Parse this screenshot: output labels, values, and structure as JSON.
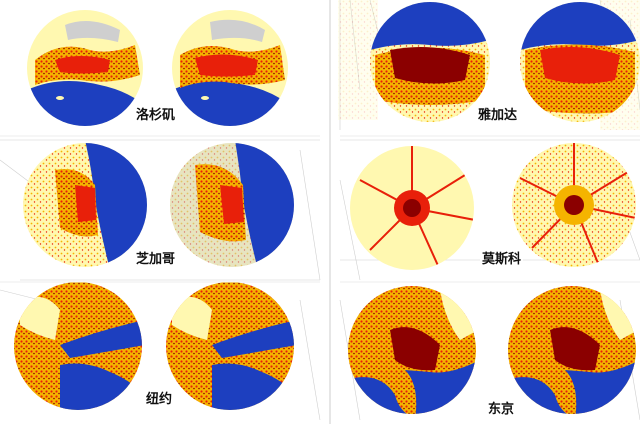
{
  "cities": [
    {
      "id": "los-angeles",
      "label": "洛杉矶"
    },
    {
      "id": "jakarta",
      "label": "雅加达"
    },
    {
      "id": "chicago",
      "label": "芝加哥"
    },
    {
      "id": "moscow",
      "label": "莫斯科"
    },
    {
      "id": "new-york",
      "label": "纽约"
    },
    {
      "id": "tokyo",
      "label": "东京"
    }
  ],
  "colors": {
    "water": "#1d3fbf",
    "urban_core": "#8b0000",
    "urban": "#e8200a",
    "suburban": "#f5b400",
    "rural": "#fff8b0",
    "land_grey": "#cfcfcf"
  }
}
